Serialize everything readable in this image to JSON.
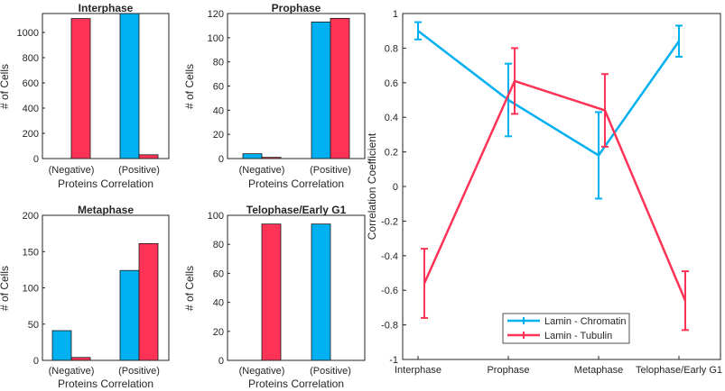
{
  "chart_data": [
    {
      "type": "bar",
      "title": "Interphase",
      "xlabel": "Proteins Correlation",
      "ylabel": "# of Cells",
      "categories": [
        "(Negative)",
        "(Positive)"
      ],
      "series": [
        {
          "name": "Lamin - Chromatin",
          "values": [
            0,
            1150
          ]
        },
        {
          "name": "Lamin - Tubulin",
          "values": [
            1110,
            30
          ]
        }
      ],
      "ylim": [
        0,
        1150
      ],
      "yticks": [
        0,
        200,
        400,
        600,
        800,
        1000
      ]
    },
    {
      "type": "bar",
      "title": "Prophase",
      "xlabel": "Proteins Correlation",
      "ylabel": "# of Cells",
      "categories": [
        "(Negative)",
        "(Positive)"
      ],
      "series": [
        {
          "name": "Lamin - Chromatin",
          "values": [
            4,
            113
          ]
        },
        {
          "name": "Lamin - Tubulin",
          "values": [
            1,
            116
          ]
        }
      ],
      "ylim": [
        0,
        120
      ],
      "yticks": [
        0,
        20,
        40,
        60,
        80,
        100,
        120
      ]
    },
    {
      "type": "bar",
      "title": "Metaphase",
      "xlabel": "Proteins Correlation",
      "ylabel": "# of Cells",
      "categories": [
        "(Negative)",
        "(Positive)"
      ],
      "series": [
        {
          "name": "Lamin - Chromatin",
          "values": [
            41,
            124
          ]
        },
        {
          "name": "Lamin - Tubulin",
          "values": [
            4,
            161
          ]
        }
      ],
      "ylim": [
        0,
        200
      ],
      "yticks": [
        0,
        50,
        100,
        150,
        200
      ]
    },
    {
      "type": "bar",
      "title": "Telophase/Early G1",
      "xlabel": "Proteins Correlation",
      "ylabel": "# of Cells",
      "categories": [
        "(Negative)",
        "(Positive)"
      ],
      "series": [
        {
          "name": "Lamin - Chromatin",
          "values": [
            0,
            94
          ]
        },
        {
          "name": "Lamin - Tubulin",
          "values": [
            94,
            0
          ]
        }
      ],
      "ylim": [
        0,
        100
      ],
      "yticks": [
        0,
        20,
        40,
        60,
        80,
        100
      ]
    },
    {
      "type": "line",
      "title": "",
      "xlabel": "",
      "ylabel": "Correlation Coefficient",
      "categories": [
        "Interphase",
        "Prophase",
        "Metaphase",
        "Telophase/Early G1"
      ],
      "series": [
        {
          "name": "Lamin - Chromatin",
          "values": [
            0.9,
            0.5,
            0.18,
            0.84
          ],
          "errors": [
            0.05,
            0.21,
            0.25,
            0.09
          ]
        },
        {
          "name": "Lamin - Tubulin",
          "values": [
            -0.56,
            0.61,
            0.44,
            -0.66
          ],
          "errors": [
            0.2,
            0.19,
            0.21,
            0.17
          ]
        }
      ],
      "ylim": [
        -1,
        1
      ],
      "yticks": [
        "-1",
        "-0.8",
        "-0.6",
        "-0.4",
        "-0.2",
        "0",
        "0.2",
        "0.4",
        "0.6",
        "0.8",
        "1"
      ],
      "legend_position": "bottom-center"
    }
  ],
  "colors": {
    "chromatin": "#00b0f0",
    "tubulin": "#ff3355",
    "axis": "#262626"
  }
}
